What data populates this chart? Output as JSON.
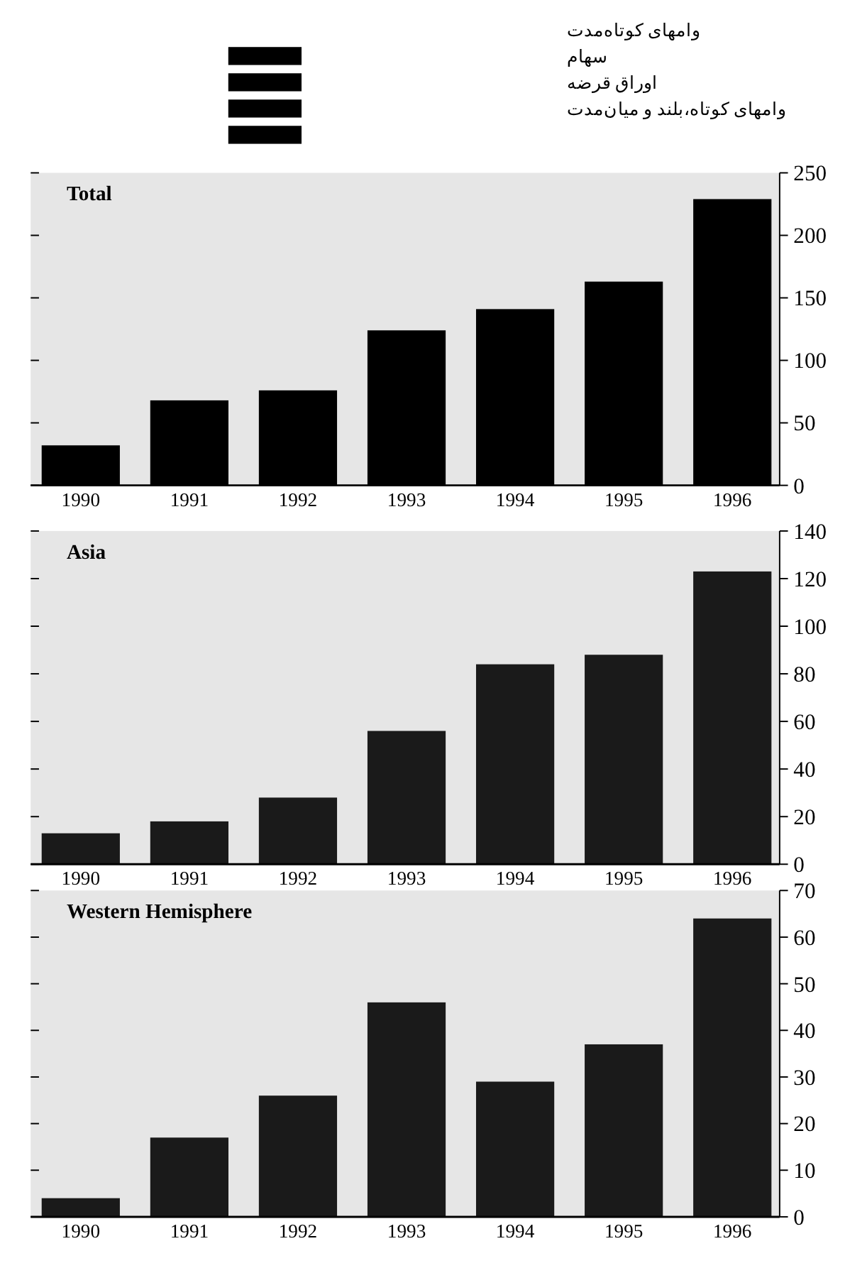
{
  "chart_data": [
    {
      "type": "other",
      "annotations": [
        "وامهای کوتاه‌مدت",
        "سهام",
        "اوراق قرضه",
        "وامهای کوتاه،بلند و میان‌مدت"
      ]
    },
    {
      "type": "bar",
      "title": "Total",
      "categories": [
        "1990",
        "1991",
        "1992",
        "1993",
        "1994",
        "1995",
        "1996"
      ],
      "values": [
        32,
        68,
        76,
        124,
        141,
        163,
        229
      ],
      "color": "#000000",
      "ylim": [
        0,
        250
      ],
      "yticks": [
        0,
        50,
        100,
        150,
        200,
        250
      ]
    },
    {
      "type": "bar",
      "title": "Asia",
      "categories": [
        "1990",
        "1991",
        "1992",
        "1993",
        "1994",
        "1995",
        "1996"
      ],
      "values": [
        13,
        18,
        28,
        56,
        84,
        88,
        123
      ],
      "color": "#1a1a1a",
      "ylim": [
        0,
        140
      ],
      "yticks": [
        0,
        20,
        40,
        60,
        80,
        100,
        120,
        140
      ]
    },
    {
      "type": "bar",
      "title": "Western Hemisphere",
      "categories": [
        "1990",
        "1991",
        "1992",
        "1993",
        "1994",
        "1995",
        "1996"
      ],
      "values": [
        4,
        17,
        26,
        46,
        29,
        37,
        64
      ],
      "color": "#1a1a1a",
      "ylim": [
        0,
        70
      ],
      "yticks": [
        0,
        10,
        20,
        30,
        40,
        50,
        60,
        70
      ]
    }
  ]
}
